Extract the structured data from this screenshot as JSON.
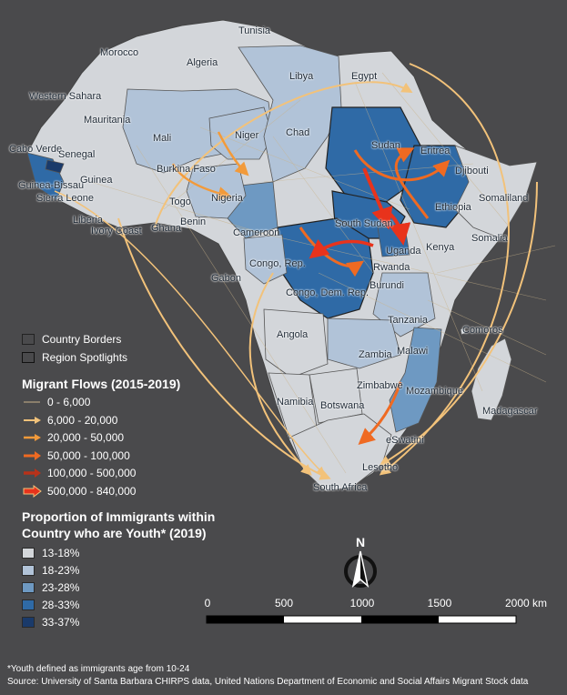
{
  "map": {
    "countries": [
      {
        "name": "Tunisia"
      },
      {
        "name": "Morocco"
      },
      {
        "name": "Algeria"
      },
      {
        "name": "Libya"
      },
      {
        "name": "Egypt"
      },
      {
        "name": "Western Sahara"
      },
      {
        "name": "Mauritania"
      },
      {
        "name": "Mali"
      },
      {
        "name": "Niger"
      },
      {
        "name": "Chad"
      },
      {
        "name": "Sudan"
      },
      {
        "name": "Eritrea"
      },
      {
        "name": "Djibouti"
      },
      {
        "name": "Somaliland"
      },
      {
        "name": "Ethiopia"
      },
      {
        "name": "Somalia"
      },
      {
        "name": "Kenya"
      },
      {
        "name": "Uganda"
      },
      {
        "name": "South Sudan"
      },
      {
        "name": "Cabo Verde"
      },
      {
        "name": "Senegal"
      },
      {
        "name": "Guinea-Bissau"
      },
      {
        "name": "Guinea"
      },
      {
        "name": "Sierra Leone"
      },
      {
        "name": "Liberia"
      },
      {
        "name": "Ivory Coast"
      },
      {
        "name": "Ghana"
      },
      {
        "name": "Togo"
      },
      {
        "name": "Benin"
      },
      {
        "name": "Burkina Faso"
      },
      {
        "name": "Nigeria"
      },
      {
        "name": "Cameroon"
      },
      {
        "name": "Gabon"
      },
      {
        "name": "Congo, Rep."
      },
      {
        "name": "Congo, Dem. Rep."
      },
      {
        "name": "Rwanda"
      },
      {
        "name": "Burundi"
      },
      {
        "name": "Tanzania"
      },
      {
        "name": "Comoros"
      },
      {
        "name": "Angola"
      },
      {
        "name": "Zambia"
      },
      {
        "name": "Malawi"
      },
      {
        "name": "Mozambique"
      },
      {
        "name": "Madagascar"
      },
      {
        "name": "Zimbabwe"
      },
      {
        "name": "Namibia"
      },
      {
        "name": "Botswana"
      },
      {
        "name": "eSwatini"
      },
      {
        "name": "Lesotho"
      },
      {
        "name": "South Africa"
      }
    ],
    "colors": {
      "background": "#4a4a4c",
      "class1": "#d3d6da",
      "class2": "#b1c3d8",
      "class3": "#6e99c2",
      "class4": "#2f6aa6",
      "class5": "#1a3a6a",
      "flow_light": "#c9b38a",
      "flow_a": "#f2c27a",
      "flow_b": "#f29a3a",
      "flow_c": "#ef6a22",
      "flow_d": "#b8321a",
      "flow_e": "#e8331c"
    }
  },
  "legend": {
    "borders": [
      {
        "label": "Country Borders"
      },
      {
        "label": "Region Spotlights"
      }
    ],
    "flows_title": "Migrant Flows (2015-2019)",
    "flows": [
      {
        "label": "0 - 6,000"
      },
      {
        "label": "6,000 - 20,000"
      },
      {
        "label": "20,000 - 50,000"
      },
      {
        "label": "50,000 - 100,000"
      },
      {
        "label": "100,000 - 500,000"
      },
      {
        "label": "500,000 - 840,000"
      }
    ],
    "youth_title_1": "Proportion of Immigrants within",
    "youth_title_2": "Country who are Youth* (2019)",
    "youth": [
      {
        "label": "13-18%"
      },
      {
        "label": "18-23%"
      },
      {
        "label": "23-28%"
      },
      {
        "label": "28-33%"
      },
      {
        "label": "33-37%"
      }
    ]
  },
  "north_arrow": {
    "label": "N"
  },
  "scale_bar": {
    "ticks": [
      "0",
      "500",
      "1000",
      "1500",
      "2000 km"
    ]
  },
  "footnotes": {
    "youth_def": "*Youth defined as immigrants age from 10-24",
    "source": "Source: University of Santa Barbara CHIRPS data, United Nations Department of Economic and Social Affairs Migrant Stock data"
  }
}
